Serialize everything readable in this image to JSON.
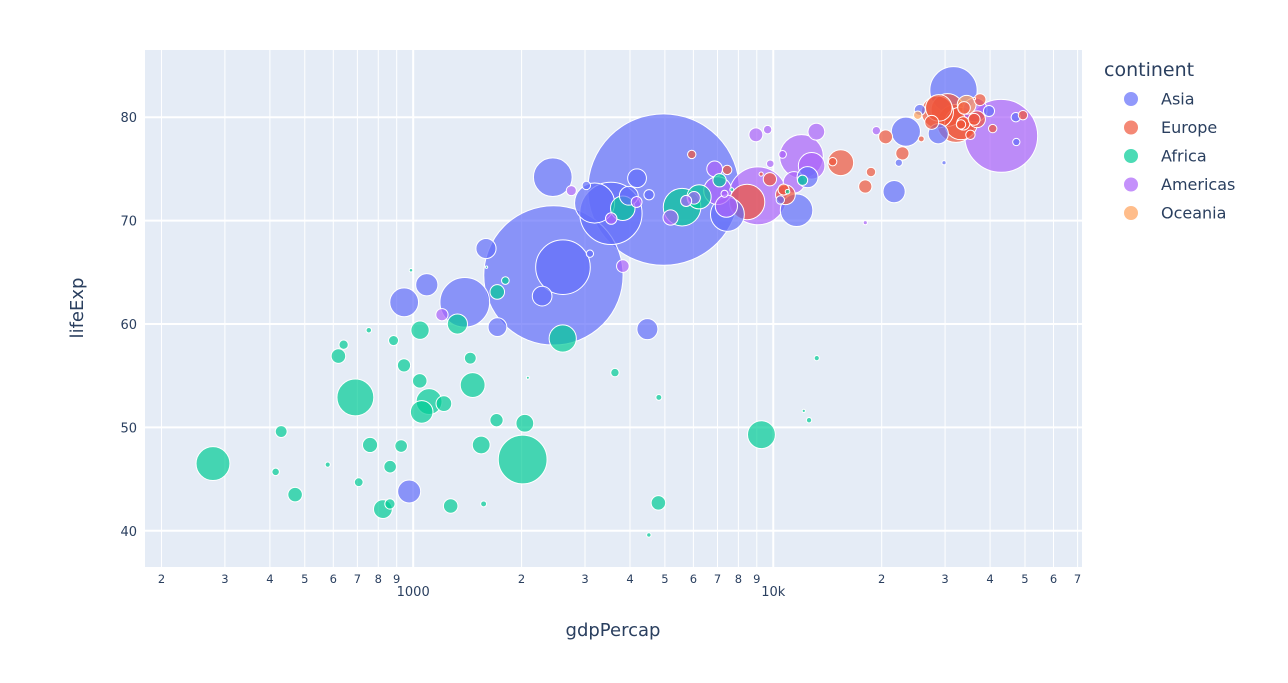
{
  "chart_data": {
    "type": "scatter",
    "subtype": "bubble",
    "title": "",
    "xlabel": "gdpPercap",
    "ylabel": "lifeExp",
    "x_scale": "log",
    "xlim": [
      180,
      72000
    ],
    "ylim": [
      36.5,
      86.5
    ],
    "x_major_ticks": [
      {
        "value": 1000,
        "label": "1000"
      },
      {
        "value": 10000,
        "label": "10k"
      }
    ],
    "x_minor_ticks": [
      {
        "value": 200,
        "label": "2"
      },
      {
        "value": 300,
        "label": "3"
      },
      {
        "value": 400,
        "label": "4"
      },
      {
        "value": 500,
        "label": "5"
      },
      {
        "value": 600,
        "label": "6"
      },
      {
        "value": 700,
        "label": "7"
      },
      {
        "value": 800,
        "label": "8"
      },
      {
        "value": 900,
        "label": "9"
      },
      {
        "value": 2000,
        "label": "2"
      },
      {
        "value": 3000,
        "label": "3"
      },
      {
        "value": 4000,
        "label": "4"
      },
      {
        "value": 5000,
        "label": "5"
      },
      {
        "value": 6000,
        "label": "6"
      },
      {
        "value": 7000,
        "label": "7"
      },
      {
        "value": 8000,
        "label": "8"
      },
      {
        "value": 9000,
        "label": "9"
      },
      {
        "value": 20000,
        "label": "2"
      },
      {
        "value": 30000,
        "label": "3"
      },
      {
        "value": 40000,
        "label": "4"
      },
      {
        "value": 50000,
        "label": "5"
      },
      {
        "value": 60000,
        "label": "6"
      },
      {
        "value": 70000,
        "label": "7"
      }
    ],
    "y_ticks": [
      {
        "value": 40,
        "label": "40"
      },
      {
        "value": 50,
        "label": "50"
      },
      {
        "value": 60,
        "label": "60"
      },
      {
        "value": 70,
        "label": "70"
      },
      {
        "value": 80,
        "label": "80"
      }
    ],
    "grid": true,
    "legend": {
      "title": "continent",
      "placement": "right"
    },
    "size_encoding": "area proportional to size value",
    "series": [
      {
        "name": "Asia",
        "color": "#636efa",
        "points": [
          [
            974.6,
            43.8,
            30
          ],
          [
            29796,
            75.6,
            1
          ],
          [
            1391,
            62.1,
            140
          ],
          [
            1714,
            59.7,
            20
          ],
          [
            4959,
            73.0,
            1300
          ],
          [
            39725,
            80.6,
            7
          ],
          [
            2452,
            64.7,
            1100
          ],
          [
            3541,
            70.7,
            220
          ],
          [
            11606,
            71.0,
            60
          ],
          [
            4471,
            59.5,
            25
          ],
          [
            25523,
            80.7,
            7
          ],
          [
            31656,
            82.6,
            127
          ],
          [
            4519,
            72.5,
            6
          ],
          [
            1593,
            67.3,
            23
          ],
          [
            23348,
            78.6,
            48
          ],
          [
            47307,
            77.6,
            3
          ],
          [
            10461,
            72.0,
            4
          ],
          [
            12452,
            74.2,
            25
          ],
          [
            3096,
            66.8,
            3
          ],
          [
            944,
            62.1,
            47
          ],
          [
            1091,
            63.8,
            28
          ],
          [
            22316,
            75.6,
            3
          ],
          [
            2606,
            65.5,
            169
          ],
          [
            3190,
            71.7,
            91
          ],
          [
            21655,
            72.8,
            28
          ],
          [
            47143,
            80.0,
            5
          ],
          [
            3970,
            72.4,
            20
          ],
          [
            4185,
            74.1,
            20
          ],
          [
            28718,
            78.4,
            23
          ],
          [
            7458,
            70.6,
            65
          ],
          [
            2442,
            74.2,
            85
          ],
          [
            3026,
            73.4,
            4
          ],
          [
            2281,
            62.7,
            22
          ]
        ]
      },
      {
        "name": "Europe",
        "color": "#ef553b",
        "points": [
          [
            5937,
            76.4,
            4
          ],
          [
            36126,
            79.8,
            8
          ],
          [
            33693,
            79.4,
            10
          ],
          [
            7446,
            74.9,
            5
          ],
          [
            10681,
            73.0,
            7
          ],
          [
            14619,
            75.7,
            4
          ],
          [
            22833,
            76.5,
            10
          ],
          [
            35278,
            78.3,
            5
          ],
          [
            33207,
            79.3,
            5
          ],
          [
            30470,
            80.7,
            61
          ],
          [
            32170,
            79.4,
            82
          ],
          [
            27538,
            79.5,
            11
          ],
          [
            18009,
            73.3,
            10
          ],
          [
            36181,
            81.8,
            0.3
          ],
          [
            40676,
            78.9,
            4
          ],
          [
            28570,
            80.5,
            58
          ],
          [
            9254,
            74.5,
            1
          ],
          [
            36798,
            79.8,
            16
          ],
          [
            49357,
            80.2,
            5
          ],
          [
            15390,
            75.6,
            38
          ],
          [
            20510,
            78.1,
            11
          ],
          [
            10808,
            72.5,
            22
          ],
          [
            9786,
            74.0,
            10
          ],
          [
            18678,
            74.7,
            5
          ],
          [
            25768,
            77.9,
            2
          ],
          [
            28821,
            80.9,
            40
          ],
          [
            33860,
            80.9,
            9
          ],
          [
            37506,
            81.7,
            8
          ],
          [
            8458,
            71.8,
            71
          ],
          [
            33203,
            79.4,
            60
          ]
        ]
      },
      {
        "name": "Africa",
        "color": "#00cc96",
        "points": [
          [
            6223,
            72.3,
            33
          ],
          [
            4797,
            42.7,
            12
          ],
          [
            1441,
            56.7,
            8
          ],
          [
            12570,
            50.7,
            1.6
          ],
          [
            1217,
            52.3,
            14
          ],
          [
            430,
            49.6,
            8
          ],
          [
            2042,
            50.4,
            18
          ],
          [
            706,
            44.7,
            4.4
          ],
          [
            1704,
            50.7,
            10
          ],
          [
            986,
            65.2,
            0.7
          ],
          [
            278,
            46.5,
            65
          ],
          [
            3633,
            55.3,
            4
          ],
          [
            1545,
            48.3,
            18
          ],
          [
            2082,
            54.8,
            0.5
          ],
          [
            5581,
            71.3,
            80
          ],
          [
            12154,
            51.6,
            0.6
          ],
          [
            641,
            58.0,
            4.9
          ],
          [
            691,
            52.9,
            77
          ],
          [
            13206,
            56.7,
            1.5
          ],
          [
            753,
            59.4,
            1.7
          ],
          [
            1327,
            60.0,
            23
          ],
          [
            943,
            56.0,
            9.9
          ],
          [
            579,
            46.4,
            1.5
          ],
          [
            1463,
            54.1,
            35
          ],
          [
            1569,
            42.6,
            2
          ],
          [
            415,
            45.7,
            3.2
          ],
          [
            12057,
            73.9,
            6
          ],
          [
            1045,
            59.4,
            19
          ],
          [
            759,
            48.3,
            13
          ],
          [
            1043,
            54.5,
            12
          ],
          [
            1803,
            64.2,
            3.3
          ],
          [
            10957,
            72.8,
            1.2
          ],
          [
            3820,
            71.2,
            34
          ],
          [
            824,
            42.1,
            20
          ],
          [
            4811,
            52.9,
            2
          ],
          [
            620,
            56.9,
            12
          ],
          [
            2014,
            46.9,
            135
          ],
          [
            7670,
            73.0,
            0.8
          ],
          [
            863,
            46.2,
            9
          ],
          [
            1598,
            65.5,
            0.2
          ],
          [
            1712,
            63.1,
            12
          ],
          [
            862,
            42.6,
            6
          ],
          [
            926,
            48.2,
            9
          ],
          [
            9270,
            49.3,
            44
          ],
          [
            2602,
            58.6,
            42
          ],
          [
            4513,
            39.6,
            1.1
          ],
          [
            1107,
            52.5,
            38
          ],
          [
            882,
            58.4,
            5.7
          ],
          [
            7093,
            73.9,
            10
          ],
          [
            1056,
            51.5,
            29
          ],
          [
            1271,
            42.4,
            12
          ],
          [
            470,
            43.5,
            12
          ]
        ]
      },
      {
        "name": "Americas",
        "color": "#ab63fa",
        "points": [
          [
            12779,
            75.3,
            40
          ],
          [
            3822,
            65.6,
            9
          ],
          [
            9066,
            72.4,
            190
          ],
          [
            36319,
            80.7,
            33
          ],
          [
            13172,
            78.6,
            16
          ],
          [
            7007,
            72.9,
            44
          ],
          [
            9645,
            78.8,
            4
          ],
          [
            8948,
            78.3,
            11
          ],
          [
            6025,
            72.2,
            9
          ],
          [
            6873,
            75.0,
            14
          ],
          [
            5728,
            71.9,
            7
          ],
          [
            5186,
            70.3,
            13
          ],
          [
            1202,
            60.9,
            8.5
          ],
          [
            3548,
            70.2,
            7.5
          ],
          [
            7321,
            72.6,
            2.8
          ],
          [
            11978,
            76.2,
            108
          ],
          [
            2749,
            72.9,
            5.7
          ],
          [
            9809,
            75.5,
            3.2
          ],
          [
            4173,
            71.8,
            6.7
          ],
          [
            7409,
            71.4,
            28
          ],
          [
            19329,
            78.7,
            4
          ],
          [
            18009,
            69.8,
            1
          ],
          [
            42952,
            78.2,
            301
          ],
          [
            10611,
            76.4,
            3.4
          ],
          [
            11416,
            73.7,
            26
          ]
        ]
      },
      {
        "name": "Oceania",
        "color": "#ffa15a",
        "points": [
          [
            34435,
            81.2,
            20
          ],
          [
            25185,
            80.2,
            4
          ]
        ]
      }
    ]
  }
}
